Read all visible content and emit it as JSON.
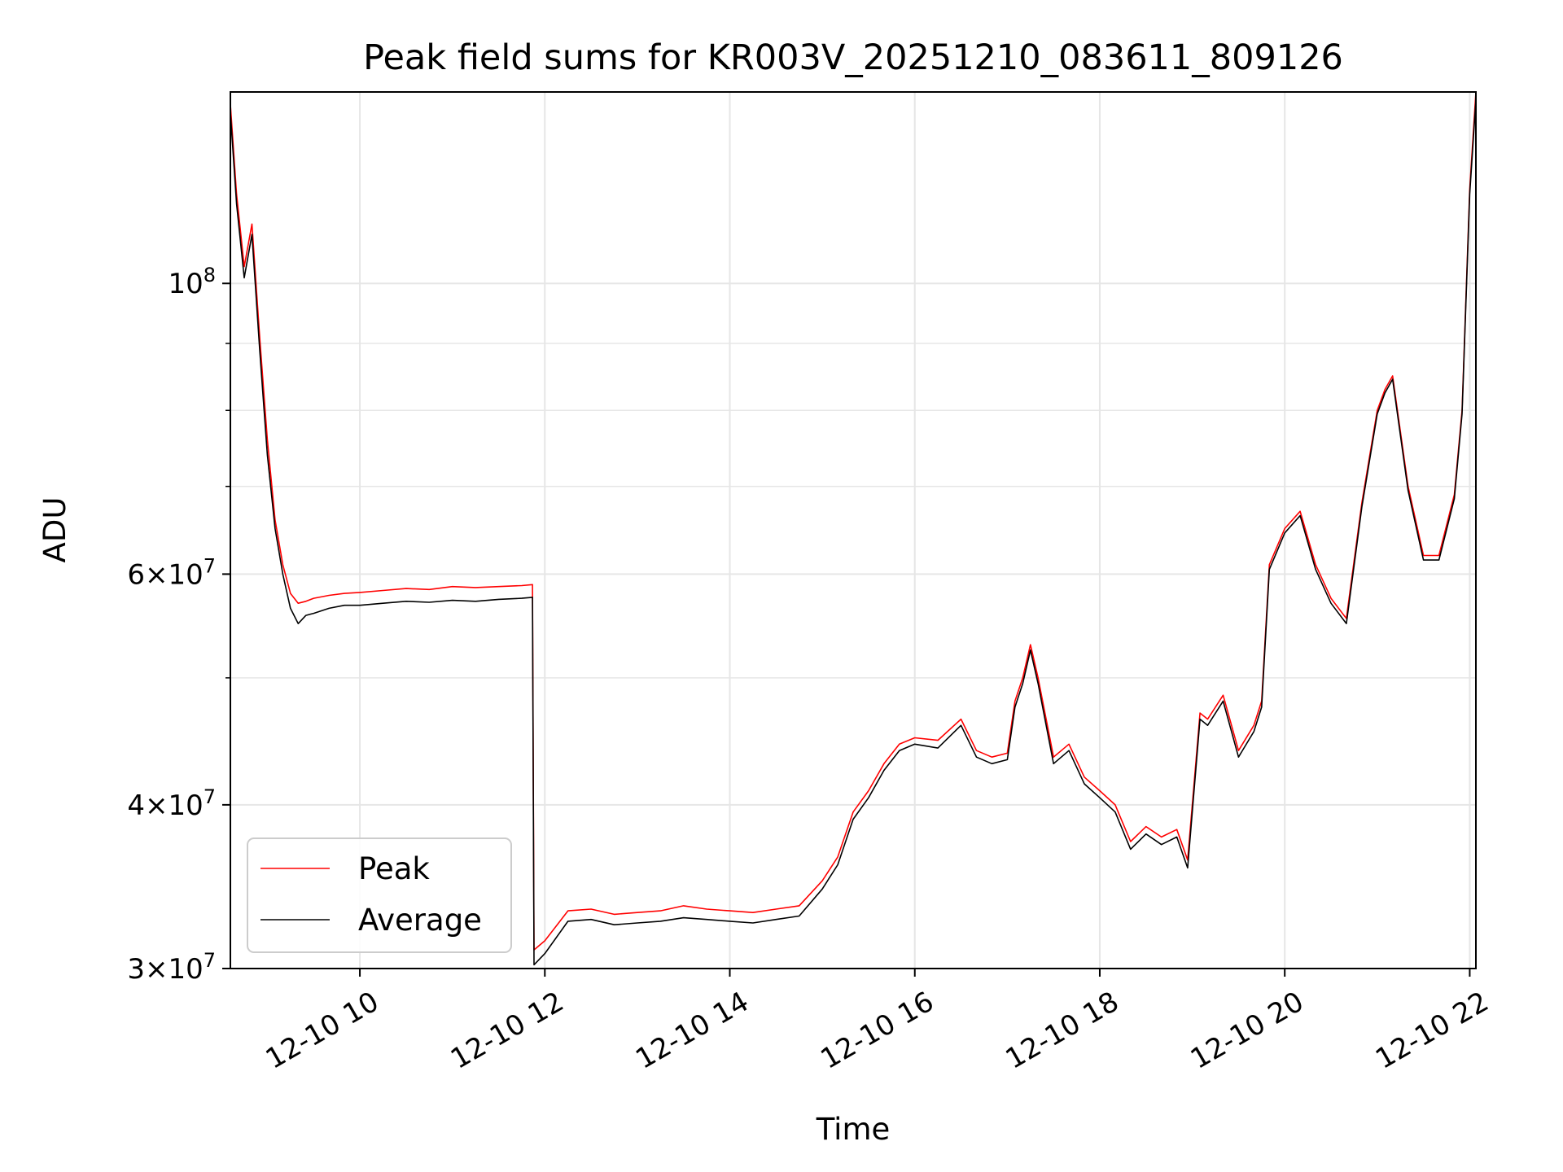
{
  "chart_data": {
    "type": "line",
    "title": "Peak field sums for KR003V_20251210_083611_809126",
    "xlabel": "Time",
    "ylabel": "ADU",
    "yscale": "log",
    "xlim": [
      "2025-12-10 08:36",
      "2025-12-10 22:04"
    ],
    "ylim": [
      30000000,
      140000000
    ],
    "grid": true,
    "legend_position": "lower-left",
    "x_ticks": [
      {
        "value": "2025-12-10 10:00",
        "label": "12-10 10"
      },
      {
        "value": "2025-12-10 12:00",
        "label": "12-10 12"
      },
      {
        "value": "2025-12-10 14:00",
        "label": "12-10 14"
      },
      {
        "value": "2025-12-10 16:00",
        "label": "12-10 16"
      },
      {
        "value": "2025-12-10 18:00",
        "label": "12-10 18"
      },
      {
        "value": "2025-12-10 20:00",
        "label": "12-10 20"
      },
      {
        "value": "2025-12-10 22:00",
        "label": "12-10 22"
      }
    ],
    "y_ticks_major": [
      {
        "value": 30000000,
        "base": "3",
        "exp": "7"
      },
      {
        "value": 40000000,
        "base": "4",
        "exp": "7"
      },
      {
        "value": 60000000,
        "base": "6",
        "exp": "7"
      },
      {
        "value": 100000000,
        "base": "10",
        "exp": "8"
      }
    ],
    "y_ticks_minor": [
      50000000,
      70000000,
      80000000,
      90000000
    ],
    "colors": {
      "peak": "#ff0000",
      "average": "#000000",
      "grid": "#e6e6e6"
    },
    "series": [
      {
        "name": "Peak",
        "x": [
          "2025-12-10 08:36",
          "2025-12-10 08:40",
          "2025-12-10 08:45",
          "2025-12-10 08:50",
          "2025-12-10 08:55",
          "2025-12-10 09:00",
          "2025-12-10 09:05",
          "2025-12-10 09:10",
          "2025-12-10 09:15",
          "2025-12-10 09:20",
          "2025-12-10 09:25",
          "2025-12-10 09:30",
          "2025-12-10 09:40",
          "2025-12-10 09:50",
          "2025-12-10 10:00",
          "2025-12-10 10:15",
          "2025-12-10 10:30",
          "2025-12-10 10:45",
          "2025-12-10 11:00",
          "2025-12-10 11:15",
          "2025-12-10 11:30",
          "2025-12-10 11:45",
          "2025-12-10 11:52",
          "2025-12-10 11:53",
          "2025-12-10 12:00",
          "2025-12-10 12:15",
          "2025-12-10 12:30",
          "2025-12-10 12:45",
          "2025-12-10 13:00",
          "2025-12-10 13:15",
          "2025-12-10 13:30",
          "2025-12-10 13:45",
          "2025-12-10 14:00",
          "2025-12-10 14:15",
          "2025-12-10 14:30",
          "2025-12-10 14:45",
          "2025-12-10 15:00",
          "2025-12-10 15:10",
          "2025-12-10 15:20",
          "2025-12-10 15:30",
          "2025-12-10 15:40",
          "2025-12-10 15:50",
          "2025-12-10 16:00",
          "2025-12-10 16:15",
          "2025-12-10 16:30",
          "2025-12-10 16:40",
          "2025-12-10 16:50",
          "2025-12-10 17:00",
          "2025-12-10 17:05",
          "2025-12-10 17:10",
          "2025-12-10 17:15",
          "2025-12-10 17:20",
          "2025-12-10 17:30",
          "2025-12-10 17:40",
          "2025-12-10 17:50",
          "2025-12-10 18:00",
          "2025-12-10 18:10",
          "2025-12-10 18:20",
          "2025-12-10 18:30",
          "2025-12-10 18:40",
          "2025-12-10 18:50",
          "2025-12-10 18:57",
          "2025-12-10 19:00",
          "2025-12-10 19:05",
          "2025-12-10 19:10",
          "2025-12-10 19:20",
          "2025-12-10 19:30",
          "2025-12-10 19:40",
          "2025-12-10 19:45",
          "2025-12-10 19:50",
          "2025-12-10 20:00",
          "2025-12-10 20:10",
          "2025-12-10 20:20",
          "2025-12-10 20:30",
          "2025-12-10 20:40",
          "2025-12-10 20:50",
          "2025-12-10 21:00",
          "2025-12-10 21:05",
          "2025-12-10 21:10",
          "2025-12-10 21:20",
          "2025-12-10 21:30",
          "2025-12-10 21:40",
          "2025-12-10 21:50",
          "2025-12-10 21:55",
          "2025-12-10 22:00",
          "2025-12-10 22:04"
        ],
        "values": [
          137000000,
          117000000,
          103000000,
          111000000,
          91000000,
          76000000,
          66000000,
          61000000,
          58000000,
          57000000,
          57200000,
          57500000,
          57800000,
          58000000,
          58100000,
          58300000,
          58500000,
          58400000,
          58700000,
          58600000,
          58700000,
          58800000,
          58900000,
          31000000,
          31500000,
          33200000,
          33300000,
          33000000,
          33100000,
          33200000,
          33500000,
          33300000,
          33200000,
          33100000,
          33300000,
          33500000,
          35000000,
          36500000,
          39500000,
          41000000,
          43000000,
          44500000,
          45000000,
          44800000,
          46500000,
          44000000,
          43500000,
          43800000,
          48000000,
          50000000,
          53000000,
          50000000,
          43500000,
          44500000,
          42000000,
          41000000,
          40000000,
          37500000,
          38500000,
          37800000,
          38300000,
          36300000,
          40000000,
          47000000,
          46500000,
          48500000,
          44000000,
          46000000,
          48000000,
          61000000,
          65000000,
          67000000,
          61000000,
          57500000,
          55500000,
          68000000,
          80000000,
          83000000,
          85000000,
          70000000,
          62000000,
          62000000,
          69000000,
          80000000,
          118000000,
          140000000
        ]
      },
      {
        "name": "Average",
        "x": [
          "2025-12-10 08:36",
          "2025-12-10 08:40",
          "2025-12-10 08:45",
          "2025-12-10 08:50",
          "2025-12-10 08:55",
          "2025-12-10 09:00",
          "2025-12-10 09:05",
          "2025-12-10 09:10",
          "2025-12-10 09:15",
          "2025-12-10 09:20",
          "2025-12-10 09:25",
          "2025-12-10 09:30",
          "2025-12-10 09:40",
          "2025-12-10 09:50",
          "2025-12-10 10:00",
          "2025-12-10 10:15",
          "2025-12-10 10:30",
          "2025-12-10 10:45",
          "2025-12-10 11:00",
          "2025-12-10 11:15",
          "2025-12-10 11:30",
          "2025-12-10 11:45",
          "2025-12-10 11:52",
          "2025-12-10 11:53",
          "2025-12-10 12:00",
          "2025-12-10 12:15",
          "2025-12-10 12:30",
          "2025-12-10 12:45",
          "2025-12-10 13:00",
          "2025-12-10 13:15",
          "2025-12-10 13:30",
          "2025-12-10 13:45",
          "2025-12-10 14:00",
          "2025-12-10 14:15",
          "2025-12-10 14:30",
          "2025-12-10 14:45",
          "2025-12-10 15:00",
          "2025-12-10 15:10",
          "2025-12-10 15:20",
          "2025-12-10 15:30",
          "2025-12-10 15:40",
          "2025-12-10 15:50",
          "2025-12-10 16:00",
          "2025-12-10 16:15",
          "2025-12-10 16:30",
          "2025-12-10 16:40",
          "2025-12-10 16:50",
          "2025-12-10 17:00",
          "2025-12-10 17:05",
          "2025-12-10 17:10",
          "2025-12-10 17:15",
          "2025-12-10 17:20",
          "2025-12-10 17:30",
          "2025-12-10 17:40",
          "2025-12-10 17:50",
          "2025-12-10 18:00",
          "2025-12-10 18:10",
          "2025-12-10 18:20",
          "2025-12-10 18:30",
          "2025-12-10 18:40",
          "2025-12-10 18:50",
          "2025-12-10 18:57",
          "2025-12-10 19:00",
          "2025-12-10 19:05",
          "2025-12-10 19:10",
          "2025-12-10 19:20",
          "2025-12-10 19:30",
          "2025-12-10 19:40",
          "2025-12-10 19:45",
          "2025-12-10 19:50",
          "2025-12-10 20:00",
          "2025-12-10 20:10",
          "2025-12-10 20:20",
          "2025-12-10 20:30",
          "2025-12-10 20:40",
          "2025-12-10 20:50",
          "2025-12-10 21:00",
          "2025-12-10 21:05",
          "2025-12-10 21:10",
          "2025-12-10 21:20",
          "2025-12-10 21:30",
          "2025-12-10 21:40",
          "2025-12-10 21:50",
          "2025-12-10 21:55",
          "2025-12-10 22:00",
          "2025-12-10 22:04"
        ],
        "values": [
          135000000,
          115000000,
          101000000,
          109000000,
          89000000,
          74000000,
          65000000,
          60000000,
          56500000,
          55000000,
          55800000,
          56000000,
          56500000,
          56800000,
          56800000,
          57000000,
          57200000,
          57100000,
          57300000,
          57200000,
          57400000,
          57500000,
          57600000,
          30200000,
          30800000,
          32600000,
          32700000,
          32400000,
          32500000,
          32600000,
          32800000,
          32700000,
          32600000,
          32500000,
          32700000,
          32900000,
          34500000,
          36000000,
          39000000,
          40500000,
          42500000,
          44000000,
          44500000,
          44200000,
          46000000,
          43500000,
          43000000,
          43300000,
          47500000,
          49500000,
          52500000,
          49500000,
          43000000,
          44000000,
          41500000,
          40500000,
          39500000,
          37000000,
          38000000,
          37300000,
          37800000,
          35800000,
          39500000,
          46500000,
          46000000,
          48000000,
          43500000,
          45500000,
          47500000,
          60500000,
          64500000,
          66500000,
          60500000,
          57000000,
          55000000,
          67500000,
          79500000,
          82500000,
          84500000,
          69500000,
          61500000,
          61500000,
          68500000,
          79500000,
          117000000,
          138000000
        ]
      }
    ]
  }
}
